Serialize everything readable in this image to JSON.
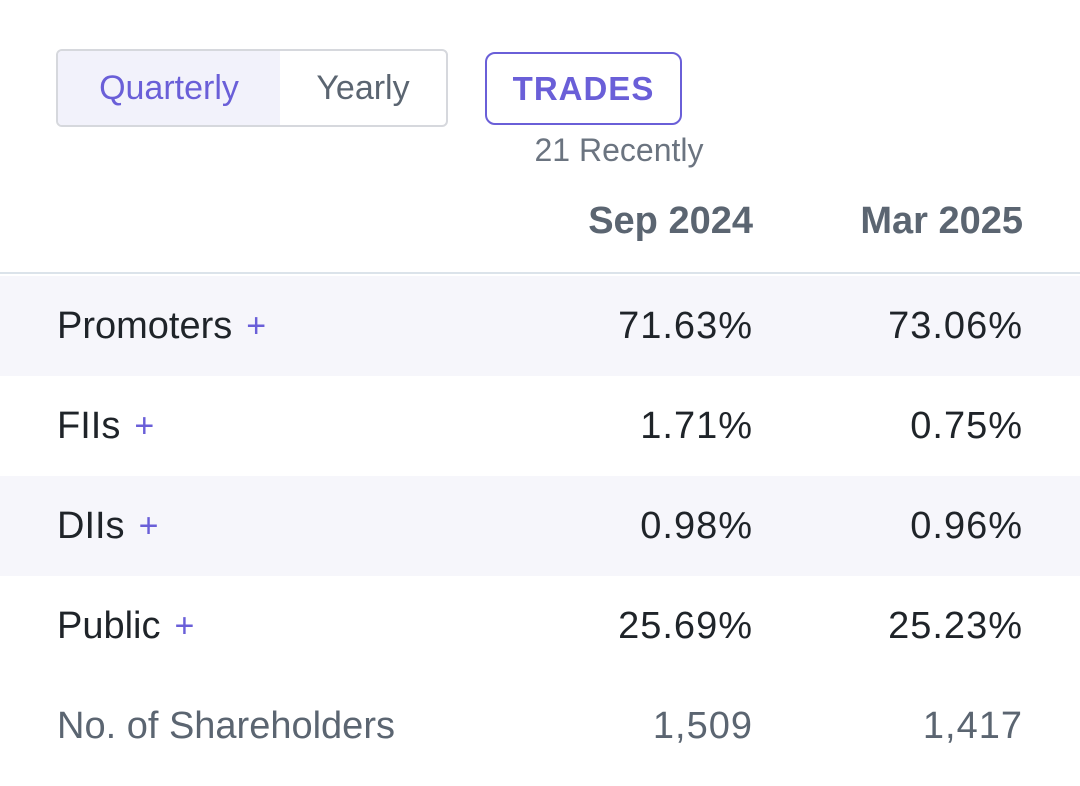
{
  "toggle": {
    "quarterly_label": "Quarterly",
    "yearly_label": "Yearly",
    "active": "Quarterly"
  },
  "trades": {
    "button_label": "TRADES",
    "subtext": "21 Recently"
  },
  "table": {
    "columns": [
      "Sep 2024",
      "Mar 2025"
    ],
    "rows": [
      {
        "label": "Promoters",
        "expand": "+",
        "values": [
          "71.63%",
          "73.06%"
        ]
      },
      {
        "label": "FIIs",
        "expand": "+",
        "values": [
          "1.71%",
          "0.75%"
        ]
      },
      {
        "label": "DIIs",
        "expand": "+",
        "values": [
          "0.98%",
          "0.96%"
        ]
      },
      {
        "label": "Public",
        "expand": "+",
        "values": [
          "25.69%",
          "25.23%"
        ]
      }
    ],
    "shareholders": {
      "label": "No. of Shareholders",
      "values": [
        "1,509",
        "1,417"
      ]
    }
  },
  "colors": {
    "accent": "#6a5fd8",
    "row_shade": "#f6f6fb",
    "muted_text": "#5b6571"
  }
}
